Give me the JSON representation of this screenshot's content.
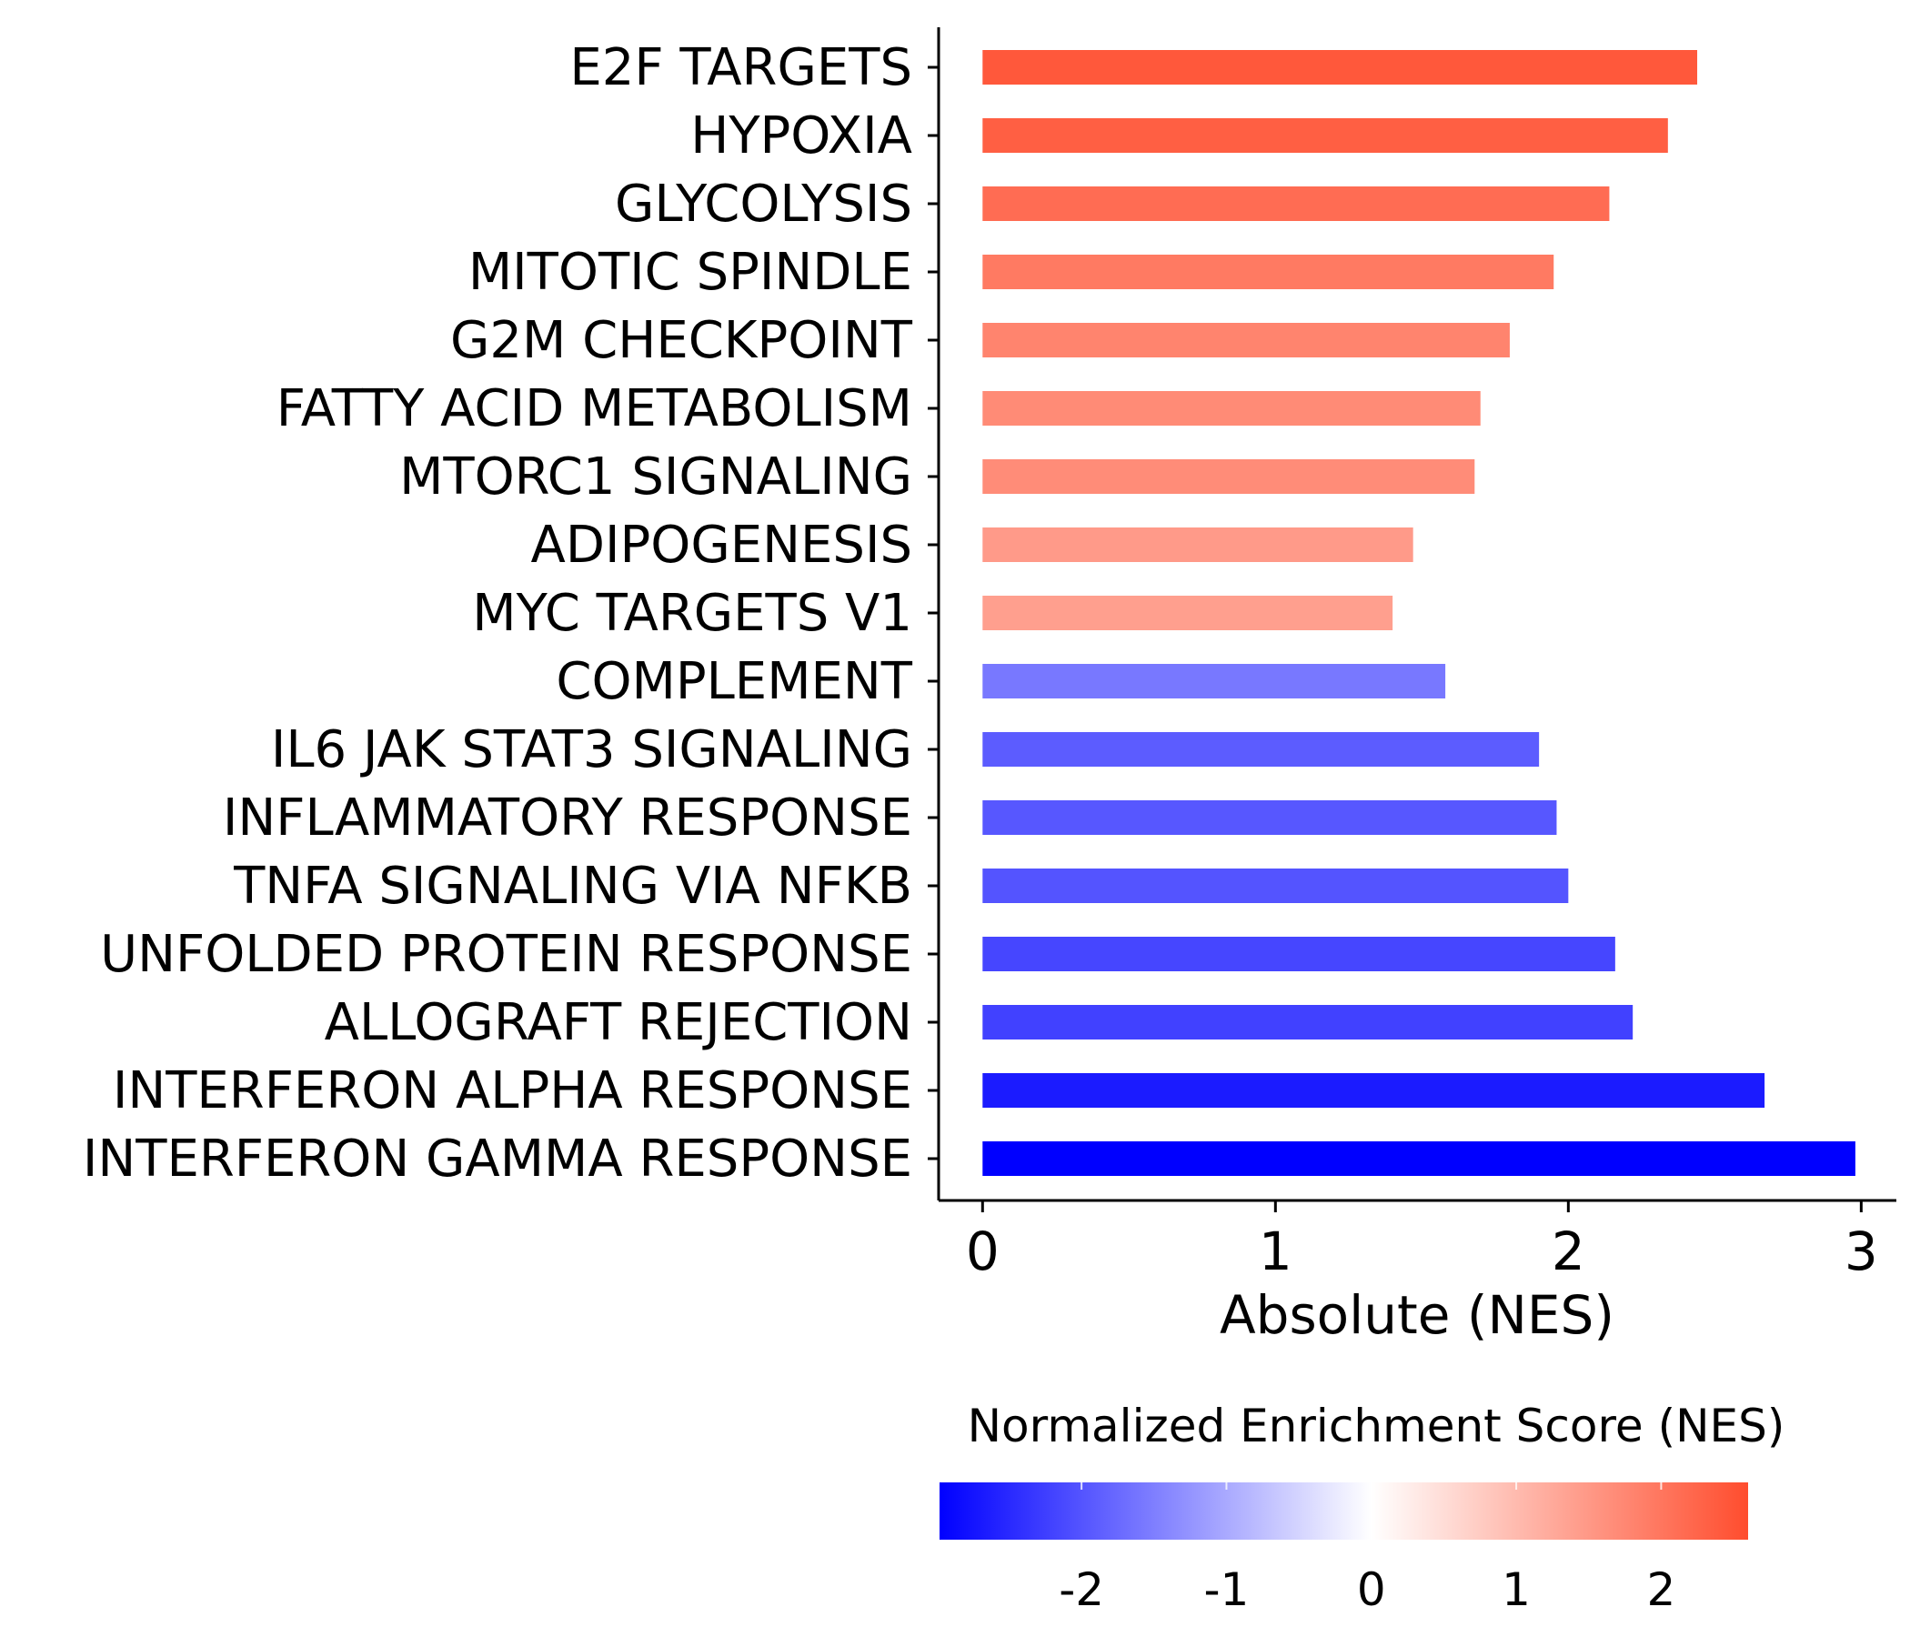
{
  "chart_data": {
    "type": "bar",
    "orientation": "horizontal",
    "xlabel": "Absolute (NES)",
    "xlim": [
      -0.15,
      3.12
    ],
    "xticks": [
      0,
      1,
      2,
      3
    ],
    "grid": false,
    "categories": [
      "E2F TARGETS",
      "HYPOXIA",
      "GLYCOLYSIS",
      "MITOTIC SPINDLE",
      "G2M CHECKPOINT",
      "FATTY ACID METABOLISM",
      "MTORC1 SIGNALING",
      "ADIPOGENESIS",
      "MYC TARGETS V1",
      "COMPLEMENT",
      "IL6 JAK STAT3 SIGNALING",
      "INFLAMMATORY RESPONSE",
      "TNFA SIGNALING VIA NFKB",
      "UNFOLDED PROTEIN RESPONSE",
      "ALLOGRAFT REJECTION",
      "INTERFERON ALPHA RESPONSE",
      "INTERFERON GAMMA RESPONSE"
    ],
    "values": [
      2.44,
      2.34,
      2.14,
      1.95,
      1.8,
      1.7,
      1.68,
      1.47,
      1.4,
      1.58,
      1.9,
      1.96,
      2.0,
      2.16,
      2.22,
      2.67,
      2.98
    ],
    "nes": [
      2.44,
      2.34,
      2.14,
      1.95,
      1.8,
      1.7,
      1.68,
      1.47,
      1.4,
      -1.58,
      -1.9,
      -1.96,
      -2.0,
      -2.16,
      -2.22,
      -2.67,
      -2.98
    ],
    "colorbar": {
      "title": "Normalized Enrichment Score (NES)",
      "range": [
        -2.98,
        2.6
      ],
      "ticks": [
        -2,
        -1,
        0,
        1,
        2
      ],
      "tick_labels": [
        "-2",
        "-1",
        "0",
        "1",
        "2"
      ],
      "colors": {
        "low": "#0000ff",
        "mid": "#ffffff",
        "high": "#ff4d2e"
      }
    }
  }
}
